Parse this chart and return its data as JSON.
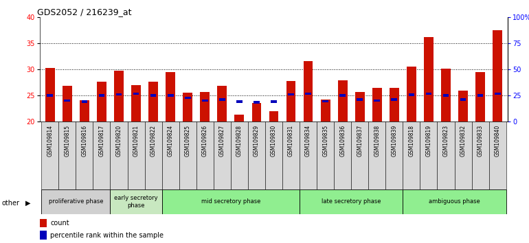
{
  "title": "GDS2052 / 216239_at",
  "samples": [
    "GSM109814",
    "GSM109815",
    "GSM109816",
    "GSM109817",
    "GSM109820",
    "GSM109821",
    "GSM109822",
    "GSM109824",
    "GSM109825",
    "GSM109826",
    "GSM109827",
    "GSM109828",
    "GSM109829",
    "GSM109830",
    "GSM109831",
    "GSM109834",
    "GSM109835",
    "GSM109836",
    "GSM109837",
    "GSM109838",
    "GSM109839",
    "GSM109818",
    "GSM109819",
    "GSM109823",
    "GSM109832",
    "GSM109833",
    "GSM109840"
  ],
  "red_values": [
    30.3,
    26.8,
    24.1,
    27.6,
    29.7,
    27.0,
    27.6,
    29.4,
    25.5,
    25.7,
    26.8,
    21.3,
    23.6,
    22.0,
    27.8,
    31.6,
    24.2,
    27.9,
    25.6,
    26.5,
    26.5,
    30.5,
    36.2,
    30.1,
    25.9,
    29.4,
    37.5
  ],
  "blue_values": [
    25.0,
    24.0,
    23.8,
    25.0,
    25.2,
    25.3,
    25.0,
    25.0,
    24.5,
    24.0,
    24.2,
    23.8,
    23.7,
    23.8,
    25.2,
    25.3,
    23.9,
    25.0,
    24.2,
    24.0,
    24.2,
    25.1,
    25.3,
    25.0,
    24.2,
    25.0,
    25.3
  ],
  "phases": [
    {
      "name": "proliferative phase",
      "start": 0,
      "end": 4
    },
    {
      "name": "early secretory\nphase",
      "start": 4,
      "end": 7
    },
    {
      "name": "mid secretory phase",
      "start": 7,
      "end": 15
    },
    {
      "name": "late secretory phase",
      "start": 15,
      "end": 21
    },
    {
      "name": "ambiguous phase",
      "start": 21,
      "end": 27
    }
  ],
  "phase_colors": [
    "#d0d0d0",
    "#c8e8c0",
    "#90ee90",
    "#90ee90",
    "#90ee90"
  ],
  "ylim_left": [
    20,
    40
  ],
  "ylim_right": [
    0,
    100
  ],
  "yticks_left": [
    20,
    25,
    30,
    35,
    40
  ],
  "yticks_right": [
    0,
    25,
    50,
    75,
    100
  ],
  "ytick_labels_right": [
    "0",
    "25",
    "50",
    "75",
    "100%"
  ],
  "red_color": "#cc1100",
  "blue_color": "#0000bb",
  "bg_color": "#ffffff",
  "baseline": 20,
  "bar_width": 0.55,
  "blue_bar_height": 0.45,
  "blue_bar_width": 0.35
}
